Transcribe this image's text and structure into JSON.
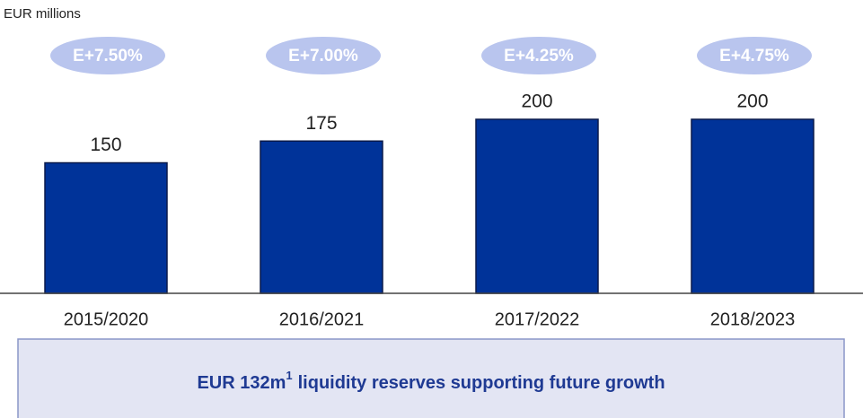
{
  "chart_data": {
    "type": "bar",
    "axis_label": "EUR millions",
    "categories": [
      "2015/2020",
      "2016/2021",
      "2017/2022",
      "2018/2023"
    ],
    "values": [
      150,
      175,
      200,
      200
    ],
    "annotations": [
      "E+7.50%",
      "E+7.00%",
      "E+4.25%",
      "E+4.75%"
    ],
    "color": "#003399",
    "ylim": [
      0,
      200
    ]
  },
  "summary_box": {
    "text": [
      "EUR 132m",
      "1",
      "liquidity reserves supporting future growth"
    ]
  }
}
